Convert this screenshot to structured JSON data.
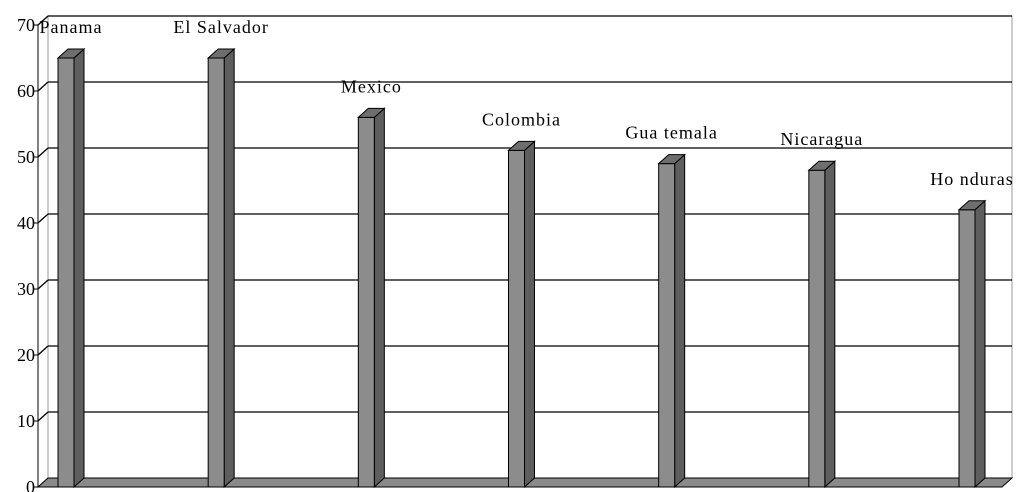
{
  "chart_data": {
    "type": "bar",
    "title": "",
    "xlabel": "",
    "ylabel": "",
    "ylim": [
      0,
      70
    ],
    "yticks": [
      0,
      10,
      20,
      30,
      40,
      50,
      60,
      70
    ],
    "grid": true,
    "categories": [
      "Panama",
      "El Salvador",
      "Mexico",
      "Colombia",
      "Gua temala",
      "Nicaragua",
      "Ho nduras"
    ],
    "values": [
      65,
      65,
      56,
      51,
      49,
      48,
      42
    ],
    "colors": {
      "bar_front": "#8c8c8c",
      "bar_top": "#6e6e6e",
      "bar_side": "#5e5e5e",
      "floor": "#8a8a8a",
      "grid": "#000000"
    }
  }
}
